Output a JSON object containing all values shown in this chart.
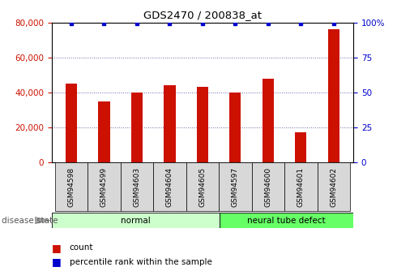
{
  "title": "GDS2470 / 200838_at",
  "samples": [
    "GSM94598",
    "GSM94599",
    "GSM94603",
    "GSM94604",
    "GSM94605",
    "GSM94597",
    "GSM94600",
    "GSM94601",
    "GSM94602"
  ],
  "counts": [
    45000,
    35000,
    40000,
    44000,
    43000,
    40000,
    48000,
    17000,
    76000
  ],
  "percentile_values": [
    99,
    99,
    99,
    99,
    99,
    99,
    99,
    99,
    99
  ],
  "groups": [
    {
      "label": "normal",
      "n": 5,
      "color": "#ccffcc"
    },
    {
      "label": "neural tube defect",
      "n": 4,
      "color": "#66ff66"
    }
  ],
  "bar_color": "#cc1100",
  "dot_color": "#0000cc",
  "ylim_left": [
    0,
    80000
  ],
  "ylim_right": [
    0,
    100
  ],
  "yticks_left": [
    0,
    20000,
    40000,
    60000,
    80000
  ],
  "yticks_right": [
    0,
    25,
    50,
    75,
    100
  ],
  "tick_color_left": "#cc1100",
  "tick_color_right": "#0000cc",
  "label_count": "count",
  "label_percentile": "percentile rank within the sample",
  "disease_state_label": "disease state",
  "bar_width": 0.35
}
